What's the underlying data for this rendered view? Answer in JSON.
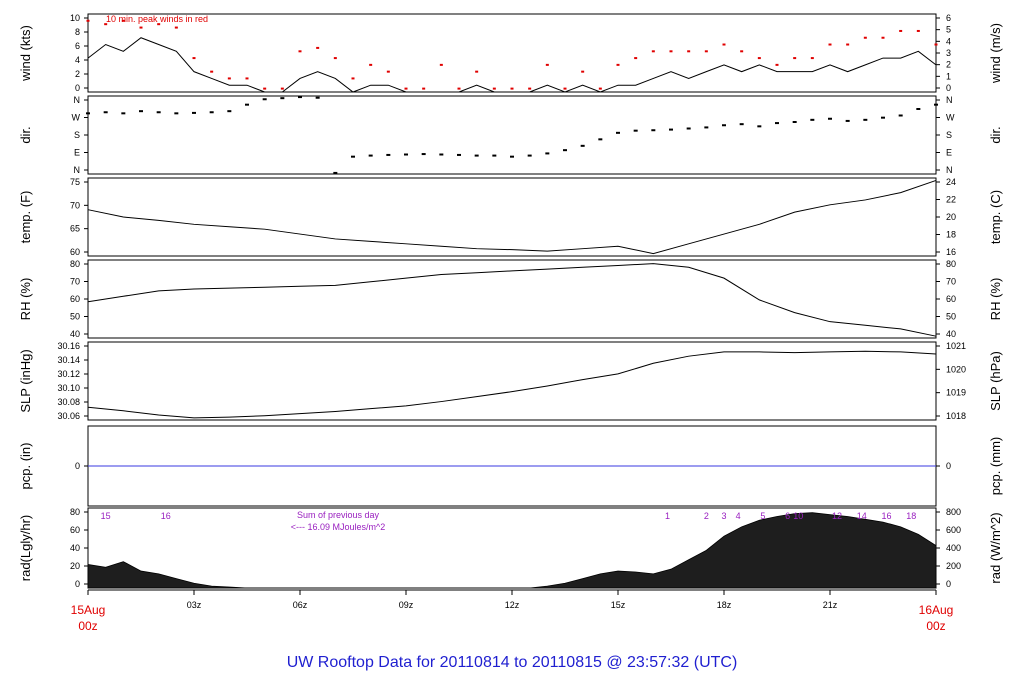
{
  "title": "UW Rooftop Data for 20110814  to  20110815 @ 23:57:32  (UTC)",
  "colors": {
    "title": "#1f1fd0",
    "peak_winds": "#e00000",
    "precip_line": "#3a3ae0",
    "annotation": "#9a20c0",
    "end_labels": "#e00000",
    "ink": "#000000",
    "radiation_fill": "#1e1e1e"
  },
  "time_axis": {
    "ticks": [
      "03z",
      "06z",
      "09z",
      "12z",
      "15z",
      "18z",
      "21z"
    ],
    "start_label": [
      "15Aug",
      "00z"
    ],
    "end_label": [
      "16Aug",
      "00z"
    ]
  },
  "chart_data": [
    {
      "type": "line",
      "panel": "wind",
      "left_label": "wind (kts)",
      "right_label": "wind (m/s)",
      "left_ticks": [
        "0",
        "2",
        "4",
        "6",
        "8",
        "10"
      ],
      "right_ticks": [
        "0",
        "1",
        "2",
        "3",
        "4",
        "5",
        "6"
      ],
      "note": "10 min. peak winds in red",
      "ylim": [
        0,
        11.5
      ],
      "hours": [
        0,
        0.5,
        1,
        1.5,
        2,
        2.5,
        3,
        3.5,
        4,
        4.5,
        5,
        5.5,
        6,
        6.5,
        7,
        7.5,
        8,
        8.5,
        9,
        9.5,
        10,
        10.5,
        11,
        11.5,
        12,
        12.5,
        13,
        13.5,
        14,
        14.5,
        15,
        15.5,
        16,
        16.5,
        17,
        17.5,
        18,
        18.5,
        19,
        19.5,
        20,
        20.5,
        21,
        21.5,
        22,
        22.5,
        23,
        23.5,
        24
      ],
      "values": [
        5,
        7,
        6,
        8,
        7,
        6,
        3,
        2,
        1,
        1,
        0,
        0,
        2,
        3,
        2,
        0,
        1,
        1,
        0,
        0,
        0,
        0,
        1,
        0,
        0,
        0,
        1,
        0,
        1,
        0,
        1,
        1,
        2,
        3,
        2,
        3,
        4,
        3,
        4,
        3,
        3,
        3,
        4,
        3,
        4,
        5,
        5,
        6,
        4
      ],
      "peaks": [
        10.5,
        10,
        10.5,
        9.5,
        10,
        9.5,
        5,
        3,
        2,
        2,
        0.5,
        0.5,
        6,
        6.5,
        5,
        2,
        4,
        3,
        0.5,
        0.5,
        4,
        0.5,
        3,
        0.5,
        0.5,
        0.5,
        4,
        0.5,
        3,
        0.5,
        4,
        5,
        6,
        6,
        6,
        6,
        7,
        6,
        5,
        4,
        5,
        5,
        7,
        7,
        8,
        8,
        9,
        9,
        7
      ]
    },
    {
      "type": "scatter",
      "panel": "dir.",
      "left_label": "dir.",
      "right_label": "dir.",
      "left_ticks": [
        "N",
        "E",
        "S",
        "W",
        "N"
      ],
      "right_ticks": [
        "N",
        "E",
        "S",
        "W",
        "N"
      ],
      "ylim": [
        0,
        360
      ],
      "hours": [
        0,
        0.5,
        1,
        1.5,
        2,
        2.5,
        3,
        3.5,
        4,
        4.5,
        5,
        5.5,
        6,
        6.5,
        7,
        7.5,
        8,
        8.5,
        9,
        9.5,
        10,
        10.5,
        11,
        11.5,
        12,
        12.5,
        13,
        13.5,
        14,
        14.5,
        15,
        15.5,
        16,
        16.5,
        17,
        17.5,
        18,
        18.5,
        19,
        19.5,
        20,
        20.5,
        21,
        21.5,
        22,
        22.5,
        23,
        23.5,
        24
      ],
      "values": [
        280,
        285,
        280,
        290,
        285,
        280,
        282,
        285,
        290,
        320,
        345,
        350,
        355,
        352,
        5,
        80,
        85,
        88,
        90,
        92,
        90,
        88,
        85,
        85,
        80,
        85,
        95,
        110,
        130,
        160,
        190,
        200,
        202,
        205,
        210,
        215,
        225,
        230,
        220,
        235,
        240,
        250,
        255,
        245,
        250,
        260,
        270,
        300,
        320
      ]
    },
    {
      "type": "line",
      "panel": "temperature",
      "left_label": "temp. (F)",
      "right_label": "temp. (C)",
      "left_ticks": [
        "60",
        "65",
        "70",
        "75"
      ],
      "right_ticks": [
        "16",
        "18",
        "20",
        "22",
        "24"
      ],
      "ylim": [
        59.5,
        75.5
      ],
      "hours": [
        0,
        1,
        2,
        3,
        4,
        5,
        6,
        7,
        8,
        9,
        10,
        11,
        12,
        13,
        14,
        15,
        16,
        17,
        18,
        19,
        20,
        21,
        22,
        23,
        24
      ],
      "values": [
        69,
        67.5,
        66.8,
        66,
        65.5,
        65,
        64,
        63,
        62.5,
        62,
        61.5,
        61,
        60.8,
        60.5,
        61,
        61.5,
        60,
        62,
        64,
        66,
        68.5,
        70,
        71,
        72.5,
        75
      ]
    },
    {
      "type": "line",
      "panel": "relative humidity",
      "left_label": "RH (%)",
      "right_label": "RH (%)",
      "left_ticks": [
        "40",
        "50",
        "60",
        "70",
        "80"
      ],
      "right_ticks": [
        "40",
        "50",
        "60",
        "70",
        "80"
      ],
      "ylim": [
        39,
        82
      ],
      "hours": [
        0,
        1,
        2,
        3,
        4,
        5,
        6,
        7,
        8,
        9,
        10,
        11,
        12,
        13,
        14,
        15,
        16,
        17,
        18,
        19,
        20,
        21,
        22,
        23,
        24
      ],
      "values": [
        59,
        62,
        65,
        66,
        66.5,
        67,
        67.5,
        68,
        70,
        72,
        74,
        75,
        76,
        77,
        78,
        79,
        80,
        78,
        72,
        60,
        53,
        48,
        46,
        44,
        40
      ]
    },
    {
      "type": "line",
      "panel": "sea level pressure",
      "left_label": "SLP (inHg)",
      "right_label": "SLP (hPa)",
      "left_ticks": [
        "30.06",
        "30.08",
        "30.10",
        "30.12",
        "30.14",
        "30.16"
      ],
      "right_ticks": [
        "1018",
        "1019",
        "1020",
        "1021"
      ],
      "ylim": [
        30.055,
        30.165
      ],
      "hours": [
        0,
        1,
        2,
        3,
        4,
        5,
        6,
        7,
        8,
        9,
        10,
        11,
        12,
        13,
        14,
        15,
        16,
        17,
        18,
        19,
        20,
        21,
        22,
        23,
        24
      ],
      "values": [
        30.073,
        30.068,
        30.062,
        30.058,
        30.059,
        30.061,
        30.064,
        30.067,
        30.071,
        30.075,
        30.081,
        30.088,
        30.095,
        30.103,
        30.112,
        30.12,
        30.135,
        30.145,
        30.151,
        30.151,
        30.15,
        30.151,
        30.152,
        30.151,
        30.148
      ]
    },
    {
      "type": "line",
      "panel": "precipitation",
      "left_label": "pcp. (in)",
      "right_label": "pcp. (mm)",
      "left_ticks": [
        "0"
      ],
      "right_ticks": [
        "0"
      ],
      "ylim": [
        -1,
        1
      ],
      "hours": [
        0,
        24
      ],
      "values": [
        0,
        0
      ]
    },
    {
      "type": "area",
      "panel": "solar radiation",
      "left_label": "rad(Lgly/hr)",
      "right_label": "rad (W/m^2)",
      "left_ticks": [
        "0",
        "20",
        "40",
        "60",
        "80"
      ],
      "right_ticks": [
        "0",
        "200",
        "400",
        "600",
        "800"
      ],
      "ylim": [
        0,
        85
      ],
      "hours": [
        0,
        0.5,
        1,
        1.5,
        2,
        2.5,
        3,
        3.5,
        4,
        4.5,
        5,
        5.5,
        6,
        6.5,
        7,
        7.5,
        8,
        8.5,
        9,
        9.5,
        10,
        10.5,
        11,
        11.5,
        12,
        12.5,
        13,
        13.5,
        14,
        14.5,
        15,
        15.5,
        16,
        16.5,
        17,
        17.5,
        18,
        18.5,
        19,
        19.5,
        20,
        20.5,
        21,
        21.5,
        22,
        22.5,
        23,
        23.5,
        24
      ],
      "values": [
        25,
        22,
        28,
        18,
        15,
        10,
        5,
        2,
        1,
        0,
        0,
        0,
        0,
        0,
        0,
        0,
        0,
        0,
        0,
        0,
        0,
        0,
        0,
        0,
        0,
        0,
        2,
        5,
        10,
        15,
        18,
        17,
        15,
        20,
        30,
        40,
        55,
        65,
        72,
        76,
        79,
        80,
        78,
        76,
        73,
        70,
        65,
        57,
        45
      ],
      "hourly_marks": [
        {
          "label": "15",
          "hour": 0.5
        },
        {
          "label": "16",
          "hour": 2.2
        },
        {
          "label": "1",
          "hour": 16.4
        },
        {
          "label": "2",
          "hour": 17.5
        },
        {
          "label": "3",
          "hour": 18.0
        },
        {
          "label": "4",
          "hour": 18.4
        },
        {
          "label": "5",
          "hour": 19.1
        },
        {
          "label": "6",
          "hour": 19.8
        },
        {
          "label": "10",
          "hour": 20.1
        },
        {
          "label": "12",
          "hour": 21.2
        },
        {
          "label": "14",
          "hour": 21.9
        },
        {
          "label": "16",
          "hour": 22.6
        },
        {
          "label": "18",
          "hour": 23.3
        }
      ],
      "annotation_lines": [
        "Sum of previous day",
        "<--- 16.09 MJoules/m^2"
      ]
    }
  ]
}
